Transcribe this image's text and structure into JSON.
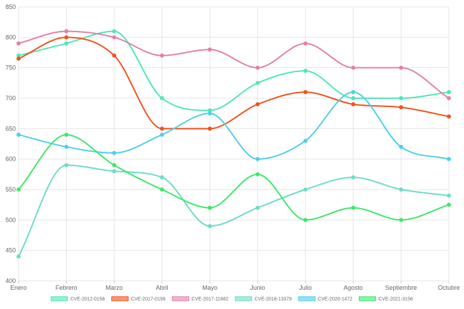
{
  "chart_data": {
    "type": "line",
    "categories": [
      "Enero",
      "Febrero",
      "Marzo",
      "Abril",
      "Mayo",
      "Junio",
      "Julio",
      "Agosto",
      "Septiembre",
      "Octubre"
    ],
    "ylim": [
      400,
      850
    ],
    "yticks": [
      400,
      450,
      500,
      550,
      600,
      650,
      700,
      750,
      800,
      850
    ],
    "grid": true,
    "legend_position": "bottom",
    "series": [
      {
        "name": "CVE-2012-0158",
        "color": "#4ee8b6",
        "values": [
          770,
          790,
          810,
          700,
          680,
          725,
          745,
          700,
          700,
          710
        ]
      },
      {
        "name": "CVE-2017-0199",
        "color": "#f4511e",
        "values": [
          765,
          800,
          770,
          650,
          650,
          690,
          710,
          690,
          685,
          670
        ]
      },
      {
        "name": "CVE-2017-11882",
        "color": "#e57fa8",
        "values": [
          790,
          810,
          800,
          770,
          780,
          750,
          790,
          750,
          750,
          700
        ]
      },
      {
        "name": "CVE-2018-13379",
        "color": "#6edbc8",
        "values": [
          440,
          590,
          580,
          570,
          490,
          520,
          550,
          570,
          550,
          540
        ]
      },
      {
        "name": "CVE-2020-1472",
        "color": "#4dcfe8",
        "values": [
          640,
          620,
          610,
          640,
          675,
          600,
          630,
          710,
          620,
          600
        ]
      },
      {
        "name": "CVE-2021-3156",
        "color": "#3ee86a",
        "values": [
          550,
          640,
          590,
          550,
          520,
          575,
          500,
          520,
          500,
          525
        ]
      }
    ]
  }
}
